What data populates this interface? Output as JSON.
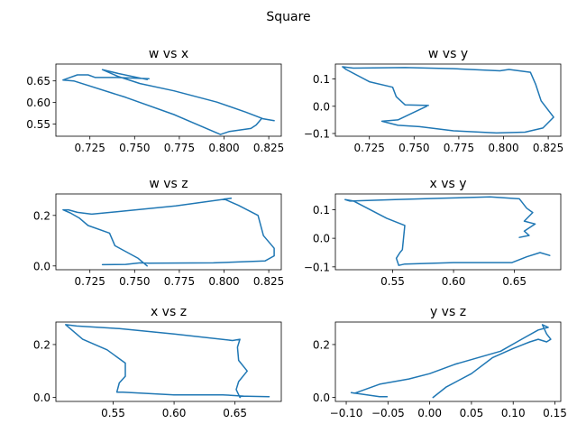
{
  "figure": {
    "title": "Square"
  },
  "chart_data": [
    {
      "type": "line",
      "title": "w vs x",
      "xlim": [
        0.706,
        0.832
      ],
      "ylim": [
        0.522,
        0.689
      ],
      "xticks": [
        0.725,
        0.75,
        0.775,
        0.8,
        0.825
      ],
      "xtick_labels": [
        "0.725",
        "0.750",
        "0.775",
        "0.800",
        "0.825"
      ],
      "yticks": [
        0.55,
        0.6,
        0.65
      ],
      "ytick_labels": [
        "0.55",
        "0.60",
        "0.65"
      ],
      "series": [
        {
          "x": [
            0.758,
            0.745,
            0.74,
            0.728,
            0.724,
            0.718,
            0.71,
            0.716,
            0.745,
            0.772,
            0.798,
            0.803,
            0.815,
            0.818,
            0.821,
            0.828,
            0.822,
            0.812,
            0.796,
            0.772,
            0.753,
            0.741,
            0.732,
            0.741,
            0.757
          ],
          "y": [
            0.655,
            0.657,
            0.658,
            0.658,
            0.664,
            0.664,
            0.652,
            0.65,
            0.612,
            0.572,
            0.526,
            0.533,
            0.54,
            0.548,
            0.563,
            0.558,
            0.562,
            0.578,
            0.601,
            0.627,
            0.644,
            0.66,
            0.676,
            0.667,
            0.653
          ]
        }
      ]
    },
    {
      "type": "line",
      "title": "w vs y",
      "xlim": [
        0.706,
        0.832
      ],
      "ylim": [
        -0.11,
        0.155
      ],
      "xticks": [
        0.725,
        0.75,
        0.775,
        0.8,
        0.825
      ],
      "xtick_labels": [
        "0.725",
        "0.750",
        "0.775",
        "0.800",
        "0.825"
      ],
      "yticks": [
        -0.1,
        0.0,
        0.1
      ],
      "ytick_labels": [
        "−0.1",
        "0.0",
        "0.1"
      ],
      "series": [
        {
          "x": [
            0.758,
            0.745,
            0.74,
            0.738,
            0.725,
            0.712,
            0.71,
            0.716,
            0.745,
            0.772,
            0.798,
            0.803,
            0.815,
            0.818,
            0.821,
            0.828,
            0.822,
            0.812,
            0.796,
            0.772,
            0.753,
            0.741,
            0.732,
            0.741,
            0.757
          ],
          "y": [
            0.003,
            0.005,
            0.035,
            0.07,
            0.09,
            0.135,
            0.145,
            0.14,
            0.142,
            0.138,
            0.13,
            0.135,
            0.125,
            0.08,
            0.02,
            -0.04,
            -0.08,
            -0.095,
            -0.098,
            -0.09,
            -0.075,
            -0.07,
            -0.055,
            -0.05,
            0.0
          ]
        }
      ]
    },
    {
      "type": "line",
      "title": "w vs z",
      "xlim": [
        0.706,
        0.832
      ],
      "ylim": [
        -0.015,
        0.285
      ],
      "xticks": [
        0.725,
        0.75,
        0.775,
        0.8,
        0.825
      ],
      "xtick_labels": [
        "0.725",
        "0.750",
        "0.775",
        "0.800",
        "0.825"
      ],
      "yticks": [
        0.0,
        0.2
      ],
      "ytick_labels": [
        "0.0",
        "0.2"
      ],
      "series": [
        {
          "x": [
            0.732,
            0.745,
            0.753,
            0.758,
            0.794,
            0.823,
            0.828,
            0.828,
            0.822,
            0.819,
            0.808,
            0.8,
            0.804,
            0.773,
            0.745,
            0.726,
            0.718,
            0.713,
            0.71,
            0.714,
            0.719,
            0.724,
            0.736,
            0.739,
            0.752,
            0.757
          ],
          "y": [
            0.005,
            0.006,
            0.012,
            0.011,
            0.012,
            0.02,
            0.04,
            0.07,
            0.12,
            0.2,
            0.24,
            0.265,
            0.268,
            0.238,
            0.218,
            0.205,
            0.212,
            0.222,
            0.222,
            0.21,
            0.19,
            0.16,
            0.13,
            0.08,
            0.03,
            0.0
          ]
        }
      ]
    },
    {
      "type": "line",
      "title": "x vs y",
      "xlim": [
        0.503,
        0.688
      ],
      "ylim": [
        -0.11,
        0.155
      ],
      "xticks": [
        0.55,
        0.6,
        0.65
      ],
      "xtick_labels": [
        "0.55",
        "0.60",
        "0.65"
      ],
      "yticks": [
        -0.1,
        0.0,
        0.1
      ],
      "ytick_labels": [
        "−0.1",
        "0.0",
        "0.1"
      ],
      "series": [
        {
          "x": [
            0.654,
            0.662,
            0.658,
            0.667,
            0.658,
            0.665,
            0.66,
            0.654,
            0.63,
            0.59,
            0.552,
            0.515,
            0.511,
            0.518,
            0.545,
            0.56,
            0.558,
            0.556,
            0.553,
            0.555,
            0.56,
            0.6,
            0.648,
            0.66,
            0.671,
            0.679
          ],
          "y": [
            0.003,
            0.01,
            0.025,
            0.05,
            0.06,
            0.09,
            0.105,
            0.138,
            0.145,
            0.14,
            0.135,
            0.13,
            0.135,
            0.13,
            0.07,
            0.045,
            -0.04,
            -0.05,
            -0.07,
            -0.095,
            -0.09,
            -0.085,
            -0.085,
            -0.065,
            -0.05,
            -0.06
          ]
        }
      ]
    },
    {
      "type": "line",
      "title": "x vs z",
      "xlim": [
        0.503,
        0.688
      ],
      "ylim": [
        -0.015,
        0.285
      ],
      "xticks": [
        0.55,
        0.6,
        0.65
      ],
      "xtick_labels": [
        "0.55",
        "0.60",
        "0.65"
      ],
      "yticks": [
        0.0,
        0.2
      ],
      "ytick_labels": [
        "0.0",
        "0.2"
      ],
      "series": [
        {
          "x": [
            0.678,
            0.655,
            0.654,
            0.651,
            0.653,
            0.66,
            0.653,
            0.652,
            0.654,
            0.648,
            0.6,
            0.555,
            0.52,
            0.511,
            0.525,
            0.545,
            0.56,
            0.56,
            0.555,
            0.553,
            0.558,
            0.6,
            0.64,
            0.657
          ],
          "y": [
            0.003,
            0.005,
            0.0,
            0.03,
            0.06,
            0.1,
            0.14,
            0.19,
            0.22,
            0.215,
            0.24,
            0.26,
            0.27,
            0.275,
            0.22,
            0.18,
            0.13,
            0.08,
            0.055,
            0.02,
            0.02,
            0.01,
            0.01,
            0.005
          ]
        }
      ]
    },
    {
      "type": "line",
      "title": "y vs z",
      "xlim": [
        -0.113,
        0.157
      ],
      "ylim": [
        -0.015,
        0.285
      ],
      "xticks": [
        -0.1,
        -0.05,
        0.0,
        0.05,
        0.1,
        0.15
      ],
      "xtick_labels": [
        "−0.10",
        "−0.05",
        "0.00",
        "0.05",
        "0.10",
        "0.15"
      ],
      "yticks": [
        0.0,
        0.2
      ],
      "ytick_labels": [
        "0.0",
        "0.2"
      ],
      "series": [
        {
          "x": [
            -0.051,
            -0.06,
            -0.094,
            -0.09,
            -0.06,
            -0.025,
            0.0,
            0.03,
            0.085,
            0.11,
            0.13,
            0.142,
            0.135,
            0.14,
            0.145,
            0.14,
            0.13,
            0.12,
            0.1,
            0.075,
            0.05,
            0.02,
            0.004
          ],
          "y": [
            0.003,
            0.003,
            0.018,
            0.016,
            0.05,
            0.07,
            0.09,
            0.125,
            0.175,
            0.22,
            0.255,
            0.265,
            0.275,
            0.24,
            0.22,
            0.21,
            0.22,
            0.21,
            0.185,
            0.15,
            0.09,
            0.04,
            0.0
          ]
        }
      ]
    }
  ]
}
